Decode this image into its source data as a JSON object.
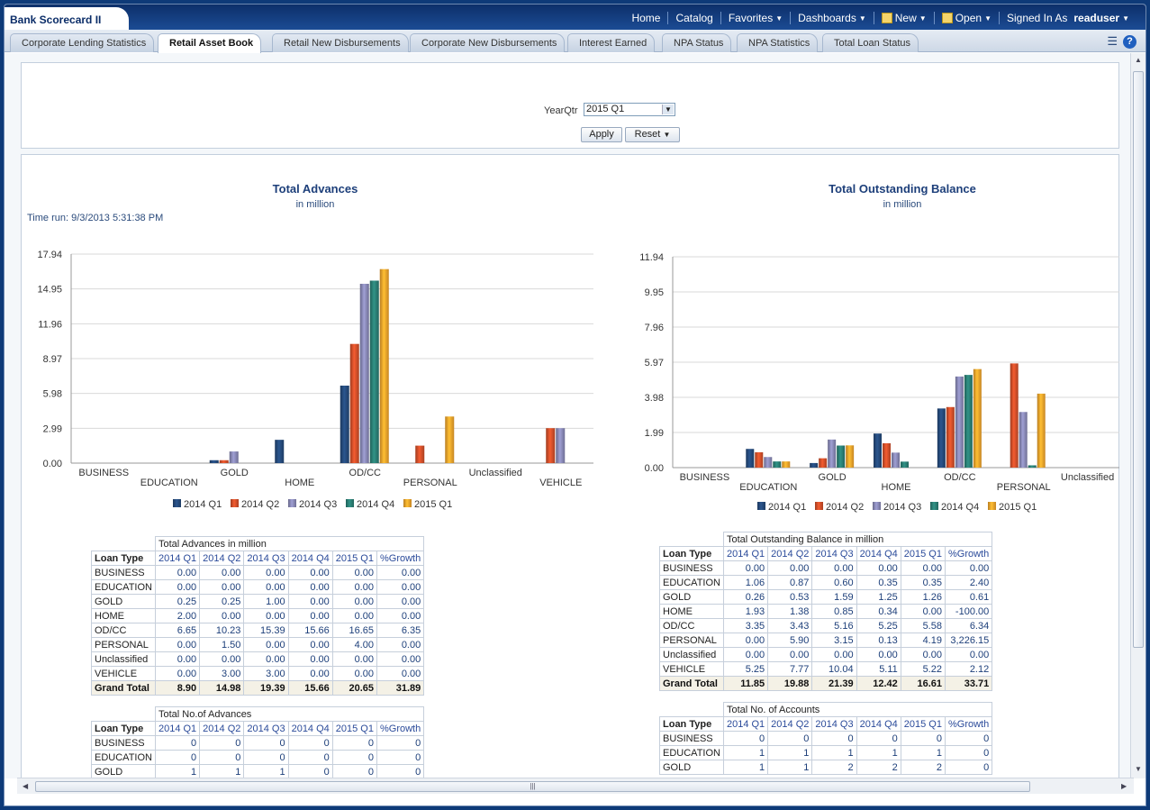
{
  "app": {
    "title": "Bank Scorecard II"
  },
  "globalnav": {
    "home": "Home",
    "catalog": "Catalog",
    "favorites": "Favorites",
    "dashboards": "Dashboards",
    "new": "New",
    "open": "Open",
    "signed_in_as": "Signed In As",
    "user": "readuser"
  },
  "tabs": [
    {
      "label": "Corporate Lending Statistics",
      "active": false
    },
    {
      "label": "Retail Asset Book",
      "active": true
    },
    {
      "label": "Retail New Disbursements",
      "active": false
    },
    {
      "label": "Corporate New Disbursements",
      "active": false
    },
    {
      "label": "Interest Earned",
      "active": false
    },
    {
      "label": "NPA Status",
      "active": false
    },
    {
      "label": "NPA Statistics",
      "active": false
    },
    {
      "label": "Total Loan Status",
      "active": false
    }
  ],
  "prompt": {
    "label": "YearQtr",
    "value": "2015 Q1",
    "apply": "Apply",
    "reset": "Reset"
  },
  "timerun": "Time run: 9/3/2013 5:31:38 PM",
  "colors": {
    "2014 Q1": "#254b7c",
    "2014 Q2": "#d4502a",
    "2014 Q3": "#8a8ab8",
    "2014 Q4": "#2b8075",
    "2015 Q1": "#f7a62c"
  },
  "chart_data": [
    {
      "type": "bar",
      "title": "Total Advances",
      "subtitle": "in million",
      "categories": [
        "BUSINESS",
        "EDUCATION",
        "GOLD",
        "HOME",
        "OD/CC",
        "PERSONAL",
        "Unclassified",
        "VEHICLE"
      ],
      "yticks": [
        "17.94",
        "14.95",
        "11.96",
        "8.97",
        "5.98",
        "2.99",
        "0.00"
      ],
      "ylim": [
        0,
        17.94
      ],
      "legend": "bottom",
      "series": [
        {
          "name": "2014 Q1",
          "values": [
            0,
            0,
            0.25,
            2.0,
            6.65,
            0,
            0,
            0
          ]
        },
        {
          "name": "2014 Q2",
          "values": [
            0,
            0,
            0.25,
            0,
            10.23,
            1.5,
            0,
            3.0
          ]
        },
        {
          "name": "2014 Q3",
          "values": [
            0,
            0,
            1.0,
            0,
            15.39,
            0,
            0,
            3.0
          ]
        },
        {
          "name": "2014 Q4",
          "values": [
            0,
            0,
            0,
            0,
            15.66,
            0,
            0,
            0
          ]
        },
        {
          "name": "2015 Q1",
          "values": [
            0,
            0,
            0,
            0,
            16.65,
            4.0,
            0,
            0
          ]
        }
      ]
    },
    {
      "type": "bar",
      "title": "Total Outstanding Balance",
      "subtitle": "in million",
      "categories": [
        "BUSINESS",
        "EDUCATION",
        "GOLD",
        "HOME",
        "OD/CC",
        "PERSONAL",
        "Unclassified"
      ],
      "yticks": [
        "11.94",
        "9.95",
        "7.96",
        "5.97",
        "3.98",
        "1.99",
        "0.00"
      ],
      "ylim": [
        0,
        11.94
      ],
      "legend": "bottom",
      "series": [
        {
          "name": "2014 Q1",
          "values": [
            0,
            1.06,
            0.26,
            1.93,
            3.35,
            0,
            0
          ]
        },
        {
          "name": "2014 Q2",
          "values": [
            0,
            0.87,
            0.53,
            1.38,
            3.43,
            5.9,
            0
          ]
        },
        {
          "name": "2014 Q3",
          "values": [
            0,
            0.6,
            1.59,
            0.85,
            5.16,
            3.15,
            0
          ]
        },
        {
          "name": "2014 Q4",
          "values": [
            0,
            0.35,
            1.25,
            0.34,
            5.25,
            0.13,
            0
          ]
        },
        {
          "name": "2015 Q1",
          "values": [
            0,
            0.35,
            1.26,
            0,
            5.58,
            4.19,
            0
          ]
        }
      ]
    }
  ],
  "table_headers": [
    "Loan Type",
    "2014 Q1",
    "2014 Q2",
    "2014 Q3",
    "2014 Q4",
    "2015 Q1",
    "%Growth"
  ],
  "tables": {
    "adv": {
      "caption": "Total Advances in million",
      "rows": [
        [
          "BUSINESS",
          "0.00",
          "0.00",
          "0.00",
          "0.00",
          "0.00",
          "0.00"
        ],
        [
          "EDUCATION",
          "0.00",
          "0.00",
          "0.00",
          "0.00",
          "0.00",
          "0.00"
        ],
        [
          "GOLD",
          "0.25",
          "0.25",
          "1.00",
          "0.00",
          "0.00",
          "0.00"
        ],
        [
          "HOME",
          "2.00",
          "0.00",
          "0.00",
          "0.00",
          "0.00",
          "0.00"
        ],
        [
          "OD/CC",
          "6.65",
          "10.23",
          "15.39",
          "15.66",
          "16.65",
          "6.35"
        ],
        [
          "PERSONAL",
          "0.00",
          "1.50",
          "0.00",
          "0.00",
          "4.00",
          "0.00"
        ],
        [
          "Unclassified",
          "0.00",
          "0.00",
          "0.00",
          "0.00",
          "0.00",
          "0.00"
        ],
        [
          "VEHICLE",
          "0.00",
          "3.00",
          "3.00",
          "0.00",
          "0.00",
          "0.00"
        ]
      ],
      "total": [
        "Grand Total",
        "8.90",
        "14.98",
        "19.39",
        "15.66",
        "20.65",
        "31.89"
      ]
    },
    "bal": {
      "caption": "Total Outstanding Balance in million",
      "rows": [
        [
          "BUSINESS",
          "0.00",
          "0.00",
          "0.00",
          "0.00",
          "0.00",
          "0.00"
        ],
        [
          "EDUCATION",
          "1.06",
          "0.87",
          "0.60",
          "0.35",
          "0.35",
          "2.40"
        ],
        [
          "GOLD",
          "0.26",
          "0.53",
          "1.59",
          "1.25",
          "1.26",
          "0.61"
        ],
        [
          "HOME",
          "1.93",
          "1.38",
          "0.85",
          "0.34",
          "0.00",
          "-100.00"
        ],
        [
          "OD/CC",
          "3.35",
          "3.43",
          "5.16",
          "5.25",
          "5.58",
          "6.34"
        ],
        [
          "PERSONAL",
          "0.00",
          "5.90",
          "3.15",
          "0.13",
          "4.19",
          "3,226.15"
        ],
        [
          "Unclassified",
          "0.00",
          "0.00",
          "0.00",
          "0.00",
          "0.00",
          "0.00"
        ],
        [
          "VEHICLE",
          "5.25",
          "7.77",
          "10.04",
          "5.11",
          "5.22",
          "2.12"
        ]
      ],
      "total": [
        "Grand Total",
        "11.85",
        "19.88",
        "21.39",
        "12.42",
        "16.61",
        "33.71"
      ]
    },
    "nadv": {
      "caption": "Total No.of Advances",
      "rows": [
        [
          "BUSINESS",
          "0",
          "0",
          "0",
          "0",
          "0",
          "0"
        ],
        [
          "EDUCATION",
          "0",
          "0",
          "0",
          "0",
          "0",
          "0"
        ],
        [
          "GOLD",
          "1",
          "1",
          "1",
          "0",
          "0",
          "0"
        ]
      ]
    },
    "nacc": {
      "caption": "Total No. of Accounts",
      "rows": [
        [
          "BUSINESS",
          "0",
          "0",
          "0",
          "0",
          "0",
          "0"
        ],
        [
          "EDUCATION",
          "1",
          "1",
          "1",
          "1",
          "1",
          "0"
        ],
        [
          "GOLD",
          "1",
          "1",
          "2",
          "2",
          "2",
          "0"
        ]
      ]
    }
  }
}
